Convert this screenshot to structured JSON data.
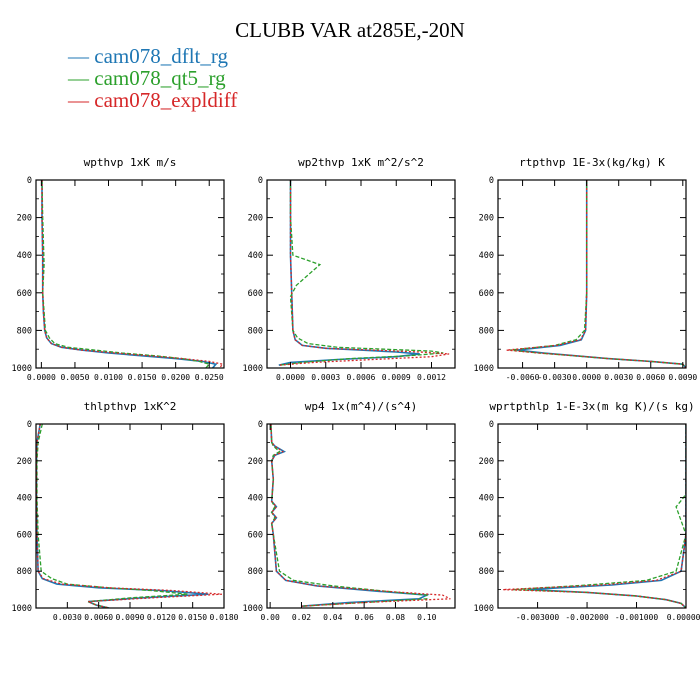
{
  "title": "CLUBB VAR at285E,-20N",
  "colors": {
    "blue": "#1f77b4",
    "green": "#2ca02c",
    "red": "#d62728",
    "brown": "#8c3a2a"
  },
  "legend": [
    {
      "label": "cam078_dflt_rg",
      "color": "#1f77b4"
    },
    {
      "label": "cam078_qt5_rg",
      "color": "#2ca02c"
    },
    {
      "label": "cam078_expldiff",
      "color": "#d62728"
    }
  ],
  "chart_data": [
    {
      "type": "line",
      "title": "wpthvp  1xK m/s",
      "xlim": [
        -0.0008,
        0.0272
      ],
      "ylim": [
        1000,
        0
      ],
      "xticks": [
        0.0,
        0.005,
        0.01,
        0.015,
        0.02,
        0.025
      ],
      "xticklabels": [
        "0.0000",
        "0.0050",
        "0.0100",
        "0.0150",
        "0.0200",
        "0.0250"
      ],
      "yticks": [
        0,
        200,
        400,
        600,
        800,
        1000
      ],
      "yticklabels": [
        "0",
        "200",
        "400",
        "600",
        "800",
        "1000"
      ],
      "series": [
        {
          "name": "cam078_dflt_rg",
          "color": "#1f77b4",
          "dash": "",
          "x": [
            0.0001,
            0.0001,
            0.0002,
            0.0002,
            0.0003,
            0.0005,
            0.0008,
            0.0015,
            0.003,
            0.006,
            0.01,
            0.015,
            0.02,
            0.024,
            0.026,
            0.0255
          ],
          "y": [
            0,
            200,
            400,
            600,
            700,
            800,
            840,
            870,
            890,
            905,
            920,
            935,
            950,
            965,
            980,
            1000
          ]
        },
        {
          "name": "cam078_qt5_rg",
          "color": "#2ca02c",
          "dash": "4,2",
          "x": [
            0.0001,
            0.0002,
            0.0004,
            0.0002,
            0.0004,
            0.0006,
            0.0012,
            0.002,
            0.004,
            0.008,
            0.012,
            0.017,
            0.021,
            0.0235,
            0.025,
            0.0245
          ],
          "y": [
            0,
            200,
            450,
            600,
            700,
            800,
            840,
            870,
            890,
            905,
            920,
            935,
            950,
            965,
            980,
            1000
          ]
        },
        {
          "name": "cam078_expldiff",
          "color": "#d62728",
          "dash": "2,2",
          "x": [
            0.0001,
            0.0001,
            0.0002,
            0.0002,
            0.0003,
            0.0005,
            0.0008,
            0.0015,
            0.003,
            0.006,
            0.011,
            0.016,
            0.021,
            0.025,
            0.027,
            0.0265
          ],
          "y": [
            0,
            200,
            400,
            600,
            700,
            800,
            840,
            870,
            890,
            905,
            920,
            935,
            950,
            965,
            980,
            1000
          ]
        }
      ]
    },
    {
      "type": "line",
      "title": "wp2thvp  1xK m^2/s^2",
      "xlim": [
        -0.0002,
        0.0014
      ],
      "ylim": [
        1000,
        0
      ],
      "xticks": [
        0.0,
        0.0003,
        0.0006,
        0.0009,
        0.0012
      ],
      "xticklabels": [
        "0.0000",
        "0.0003",
        "0.0006",
        "0.0009",
        "0.0012"
      ],
      "yticks": [
        0,
        200,
        400,
        600,
        800,
        1000
      ],
      "yticklabels": [
        "0",
        "200",
        "400",
        "600",
        "800",
        "1000"
      ],
      "series": [
        {
          "name": "cam078_dflt_rg",
          "color": "#1f77b4",
          "dash": "",
          "x": [
            0.0,
            0.0,
            0.0,
            1e-05,
            2e-05,
            4e-05,
            0.0001,
            0.0003,
            0.0006,
            0.0009,
            0.0011,
            0.0009,
            0.0004,
            0.0,
            -0.0001
          ],
          "y": [
            0,
            200,
            400,
            600,
            800,
            850,
            880,
            895,
            905,
            915,
            925,
            940,
            955,
            970,
            985
          ]
        },
        {
          "name": "cam078_qt5_rg",
          "color": "#2ca02c",
          "dash": "4,2",
          "x": [
            0.0,
            0.0,
            2e-05,
            0.00025,
            5e-05,
            0.0,
            2e-05,
            6e-05,
            0.00015,
            0.0004,
            0.0008,
            0.0012,
            0.0013,
            0.001,
            0.0005,
            0.0001,
            -0.0001
          ],
          "y": [
            0,
            200,
            400,
            450,
            560,
            620,
            800,
            840,
            870,
            890,
            900,
            910,
            920,
            935,
            950,
            970,
            985
          ]
        },
        {
          "name": "cam078_expldiff",
          "color": "#d62728",
          "dash": "2,2",
          "x": [
            0.0,
            0.0,
            0.0,
            1e-05,
            2e-05,
            4e-05,
            0.0001,
            0.0003,
            0.0007,
            0.0011,
            0.00135,
            0.0012,
            0.0007,
            0.0002,
            -0.0001
          ],
          "y": [
            0,
            200,
            400,
            600,
            800,
            850,
            880,
            895,
            905,
            915,
            925,
            940,
            955,
            970,
            985
          ]
        }
      ]
    },
    {
      "type": "line",
      "title": "rtpthvp  1E-3x(kg/kg) K",
      "xlim": [
        -0.0083,
        0.0093
      ],
      "ylim": [
        1000,
        0
      ],
      "xticks": [
        -0.006,
        -0.003,
        0.0,
        0.003,
        0.006,
        0.009
      ],
      "xticklabels": [
        "-0.0060",
        "-0.0030",
        "0.0000",
        "0.0030",
        "0.0060",
        "0.0090"
      ],
      "yticks": [
        0,
        200,
        400,
        600,
        800,
        1000
      ],
      "yticklabels": [
        "0",
        "200",
        "400",
        "600",
        "800",
        "1000"
      ],
      "series": [
        {
          "name": "cam078_dflt_rg",
          "color": "#1f77b4",
          "dash": "",
          "x": [
            0.0,
            0.0,
            0.0,
            0.0,
            -0.0001,
            -0.0005,
            -0.0025,
            -0.0065,
            -0.004,
            -0.001,
            0.002,
            0.006,
            0.009,
            0.0093
          ],
          "y": [
            0,
            200,
            400,
            600,
            800,
            850,
            880,
            905,
            920,
            935,
            950,
            965,
            980,
            1000
          ]
        },
        {
          "name": "cam078_qt5_rg",
          "color": "#2ca02c",
          "dash": "4,2",
          "x": [
            0.0,
            0.0,
            0.0,
            0.0,
            -0.0002,
            -0.001,
            -0.003,
            -0.0072,
            -0.0045,
            -0.0012,
            0.002,
            0.006,
            0.009,
            0.0093
          ],
          "y": [
            0,
            200,
            400,
            600,
            800,
            850,
            880,
            905,
            920,
            935,
            950,
            965,
            980,
            1000
          ]
        },
        {
          "name": "cam078_expldiff",
          "color": "#d62728",
          "dash": "2,2",
          "x": [
            0.0,
            0.0,
            0.0,
            0.0,
            -0.0001,
            -0.0006,
            -0.0028,
            -0.0075,
            -0.0045,
            -0.001,
            0.002,
            0.006,
            0.009,
            0.0093
          ],
          "y": [
            0,
            200,
            400,
            600,
            800,
            850,
            880,
            905,
            920,
            935,
            950,
            965,
            980,
            1000
          ]
        }
      ]
    },
    {
      "type": "line",
      "title": "thlpthvp  1xK^2",
      "xlim": [
        0.0,
        0.018
      ],
      "ylim": [
        1000,
        0
      ],
      "xticks": [
        0.003,
        0.006,
        0.009,
        0.012,
        0.015,
        0.018
      ],
      "xticklabels": [
        "0.0030",
        "0.0060",
        "0.0090",
        "0.0120",
        "0.0150",
        "0.0180"
      ],
      "yticks": [
        0,
        200,
        400,
        600,
        800,
        1000
      ],
      "yticklabels": [
        "0",
        "200",
        "400",
        "600",
        "800",
        "1000"
      ],
      "series": [
        {
          "name": "cam078_dflt_rg",
          "color": "#1f77b4",
          "dash": "",
          "x": [
            0.0004,
            0.0001,
            5e-05,
            5e-05,
            0.0001,
            0.0002,
            0.0006,
            0.002,
            0.006,
            0.012,
            0.0165,
            0.01,
            0.005,
            0.0058,
            0.007
          ],
          "y": [
            0,
            100,
            200,
            400,
            600,
            800,
            840,
            870,
            890,
            905,
            925,
            945,
            965,
            985,
            1000
          ]
        },
        {
          "name": "cam078_qt5_rg",
          "color": "#2ca02c",
          "dash": "4,2",
          "x": [
            0.0006,
            0.0002,
            0.0001,
            0.0001,
            0.0002,
            0.0005,
            0.0015,
            0.003,
            0.007,
            0.011,
            0.0145,
            0.009,
            0.005,
            0.0058,
            0.007
          ],
          "y": [
            0,
            100,
            200,
            400,
            600,
            800,
            840,
            870,
            890,
            905,
            925,
            945,
            965,
            985,
            1000
          ]
        },
        {
          "name": "cam078_expldiff",
          "color": "#d62728",
          "dash": "2,2",
          "x": [
            0.0004,
            0.0001,
            5e-05,
            5e-05,
            0.0001,
            0.0002,
            0.0007,
            0.0025,
            0.007,
            0.013,
            0.0178,
            0.011,
            0.005,
            0.0058,
            0.007
          ],
          "y": [
            0,
            100,
            200,
            400,
            600,
            800,
            840,
            870,
            890,
            905,
            925,
            945,
            965,
            985,
            1000
          ]
        }
      ]
    },
    {
      "type": "line",
      "title": "wp4  1x(m^4)/(s^4)",
      "xlim": [
        -0.002,
        0.118
      ],
      "ylim": [
        1000,
        0
      ],
      "xticks": [
        0.0,
        0.02,
        0.04,
        0.06,
        0.08,
        0.1
      ],
      "xticklabels": [
        "0.00",
        "0.02",
        "0.04",
        "0.06",
        "0.08",
        "0.10"
      ],
      "yticks": [
        0,
        200,
        400,
        600,
        800,
        1000
      ],
      "yticklabels": [
        "0",
        "200",
        "400",
        "600",
        "800",
        "1000"
      ],
      "series": [
        {
          "name": "cam078_dflt_rg",
          "color": "#1f77b4",
          "dash": "",
          "x": [
            0.0005,
            0.001,
            0.003,
            0.009,
            0.003,
            0.001,
            0.002,
            0.001,
            0.004,
            0.001,
            0.004,
            0.001,
            0.002,
            0.004,
            0.01,
            0.03,
            0.07,
            0.1,
            0.095,
            0.05,
            0.02
          ],
          "y": [
            0,
            100,
            120,
            150,
            170,
            200,
            300,
            420,
            450,
            480,
            510,
            540,
            600,
            800,
            850,
            880,
            910,
            930,
            950,
            970,
            990
          ]
        },
        {
          "name": "cam078_qt5_rg",
          "color": "#2ca02c",
          "dash": "4,2",
          "x": [
            0.0005,
            0.001,
            0.002,
            0.006,
            0.002,
            0.001,
            0.002,
            0.001,
            0.003,
            0.001,
            0.003,
            0.001,
            0.002,
            0.006,
            0.015,
            0.04,
            0.075,
            0.1,
            0.1,
            0.06,
            0.02
          ],
          "y": [
            0,
            100,
            120,
            150,
            170,
            200,
            300,
            420,
            450,
            480,
            510,
            540,
            600,
            800,
            850,
            880,
            910,
            930,
            950,
            970,
            990
          ]
        },
        {
          "name": "cam078_expldiff",
          "color": "#d62728",
          "dash": "2,2",
          "x": [
            0.0005,
            0.001,
            0.003,
            0.008,
            0.003,
            0.001,
            0.002,
            0.001,
            0.004,
            0.001,
            0.004,
            0.001,
            0.002,
            0.004,
            0.01,
            0.03,
            0.075,
            0.11,
            0.115,
            0.06,
            0.02
          ],
          "y": [
            0,
            100,
            120,
            150,
            170,
            200,
            300,
            420,
            450,
            480,
            510,
            540,
            600,
            800,
            850,
            880,
            910,
            930,
            950,
            970,
            990
          ]
        }
      ]
    },
    {
      "type": "line",
      "title": "wprtpthlp  1-E-3x(m kg K)/(s kg)",
      "xlim": [
        -0.0038,
        0.0
      ],
      "ylim": [
        1000,
        0
      ],
      "xticks": [
        -0.003,
        -0.002,
        -0.001,
        0.0
      ],
      "xticklabels": [
        "-0.003000",
        "-0.002000",
        "-0.001000",
        "0.000000"
      ],
      "yticks": [
        0,
        200,
        400,
        600,
        800,
        1000
      ],
      "yticklabels": [
        "0",
        "200",
        "400",
        "600",
        "800",
        "1000"
      ],
      "series": [
        {
          "name": "cam078_dflt_rg",
          "color": "#1f77b4",
          "dash": "",
          "x": [
            0.0,
            0.0,
            0.0,
            0.0,
            -0.0001,
            -0.0005,
            -0.0015,
            -0.0032,
            -0.002,
            -0.001,
            -0.0004,
            -0.0001,
            0.0
          ],
          "y": [
            0,
            200,
            400,
            600,
            800,
            850,
            875,
            900,
            915,
            935,
            955,
            975,
            1000
          ]
        },
        {
          "name": "cam078_qt5_rg",
          "color": "#2ca02c",
          "dash": "4,2",
          "x": [
            0.0,
            0.0,
            0.0,
            -5e-05,
            -0.0002,
            0.0,
            -0.0002,
            -0.0008,
            -0.002,
            -0.0035,
            -0.002,
            -0.001,
            -0.0004,
            -0.0001,
            0.0
          ],
          "y": [
            0,
            200,
            380,
            400,
            450,
            600,
            800,
            850,
            875,
            900,
            915,
            935,
            955,
            975,
            1000
          ]
        },
        {
          "name": "cam078_expldiff",
          "color": "#d62728",
          "dash": "2,2",
          "x": [
            0.0,
            0.0,
            0.0,
            0.0,
            -0.0001,
            -0.0006,
            -0.0017,
            -0.0037,
            -0.002,
            -0.001,
            -0.0004,
            -0.0001,
            0.0
          ],
          "y": [
            0,
            200,
            400,
            600,
            800,
            850,
            875,
            900,
            915,
            935,
            955,
            975,
            1000
          ]
        }
      ]
    }
  ]
}
